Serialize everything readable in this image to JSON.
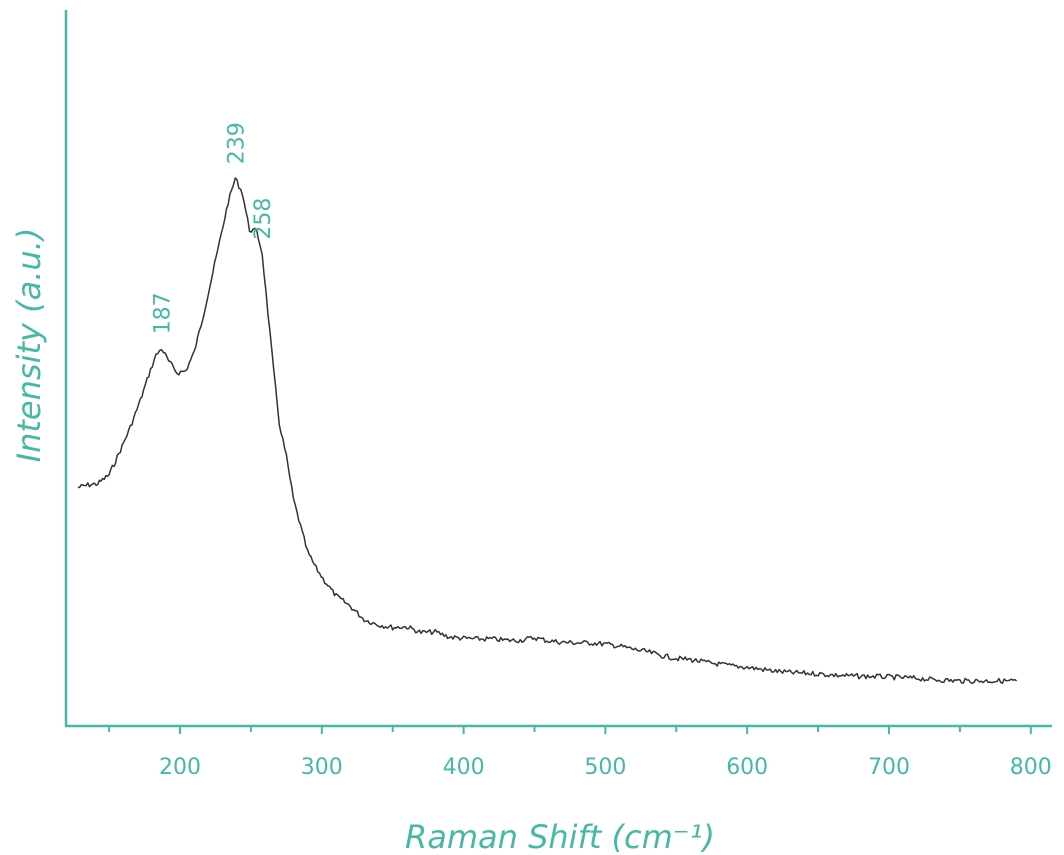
{
  "chart_data": {
    "type": "line",
    "title": "",
    "xlabel": "Raman Shift (cm⁻¹)",
    "ylabel": "Intensity (a.u.)",
    "xlim": [
      125,
      800
    ],
    "ylim": [
      0,
      100
    ],
    "x_major_ticks": [
      "200",
      "300",
      "400",
      "500",
      "600",
      "700",
      "800"
    ],
    "x_minor_ticks": [
      150,
      250,
      350,
      450,
      550,
      650,
      750
    ],
    "y_ticks_shown": false,
    "grid": false,
    "accent_color": "#45b8a6",
    "line_color": "#333333",
    "peak_annotations": [
      "187",
      "239",
      "258"
    ],
    "series": [
      {
        "x": [
          128,
          135,
          142,
          150,
          158,
          165,
          172,
          178,
          183,
          187,
          192,
          198,
          204,
          210,
          216,
          222,
          228,
          234,
          239,
          244,
          249,
          254,
          258,
          262,
          266,
          270,
          275,
          280,
          285,
          290,
          296,
          302,
          310,
          320,
          330,
          340,
          350,
          360,
          370,
          380,
          390,
          400,
          410,
          420,
          430,
          440,
          450,
          460,
          470,
          480,
          490,
          500,
          510,
          520,
          530,
          540,
          550,
          560,
          570,
          580,
          590,
          600,
          610,
          620,
          630,
          640,
          650,
          660,
          670,
          680,
          690,
          700,
          710,
          720,
          730,
          740,
          750,
          760,
          770,
          780,
          790
        ],
        "y": [
          37.0,
          37.4,
          37.6,
          39.0,
          42.8,
          46.4,
          50.5,
          54.5,
          57.5,
          58.6,
          56.6,
          54.8,
          55.1,
          58.0,
          63.3,
          69.2,
          75.2,
          81.3,
          85.0,
          82.7,
          77.0,
          76.8,
          73.3,
          64.2,
          55.2,
          47.0,
          41.8,
          35.2,
          31.0,
          27.0,
          24.5,
          22.5,
          20.2,
          18.6,
          16.5,
          15.7,
          15.3,
          15.4,
          14.5,
          14.6,
          13.8,
          13.6,
          13.5,
          13.5,
          13.3,
          13.3,
          13.7,
          13.2,
          13.0,
          12.9,
          12.9,
          12.7,
          12.4,
          11.9,
          11.5,
          10.9,
          10.5,
          10.3,
          9.9,
          9.6,
          9.3,
          9.1,
          8.8,
          8.5,
          8.3,
          8.2,
          8.1,
          7.9,
          7.8,
          7.7,
          7.7,
          7.6,
          7.5,
          7.4,
          7.2,
          7.1,
          7.0,
          7.0,
          7.0,
          7.0,
          7.0
        ]
      }
    ]
  }
}
